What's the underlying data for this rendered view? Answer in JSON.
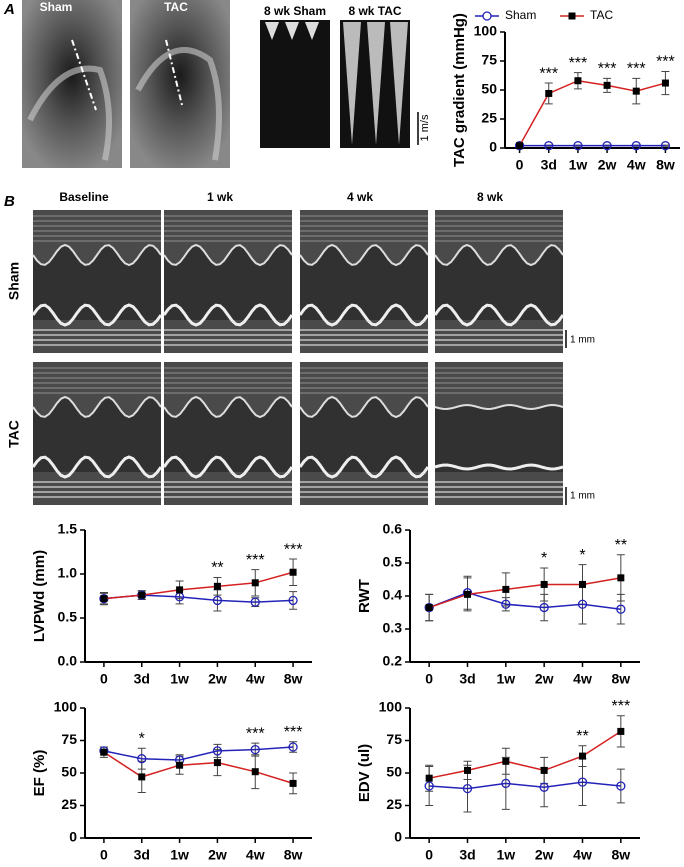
{
  "figure": {
    "panel_a": {
      "label": "A",
      "echo_labels": [
        "Sham",
        "TAC"
      ],
      "doppler_labels": [
        "8 wk Sham",
        "8 wk TAC"
      ],
      "scale": "1 m/s"
    },
    "panel_b": {
      "label": "B",
      "columns": [
        "Baseline",
        "1 wk",
        "4 wk",
        "8 wk"
      ],
      "rows": [
        "Sham",
        "TAC"
      ],
      "scales": [
        "1 mm",
        "1 mm"
      ]
    }
  },
  "chart_data": [
    {
      "type": "line",
      "y_label": "TAC gradient (mmHg)",
      "categories": [
        "0",
        "3d",
        "1w",
        "2w",
        "4w",
        "8w"
      ],
      "ylim": [
        0,
        100
      ],
      "yticks": [
        0,
        25,
        50,
        75,
        100
      ],
      "legend": "top",
      "series": [
        {
          "name": "Sham",
          "color": "#2323b8",
          "marker": "circle-open",
          "values": [
            2,
            2,
            2,
            2,
            2,
            2
          ],
          "errors": [
            0.5,
            0.5,
            0.5,
            0.5,
            0.5,
            0.5
          ]
        },
        {
          "name": "TAC",
          "color": "#d42020",
          "marker": "square",
          "values": [
            2,
            47,
            58,
            54,
            49,
            56
          ],
          "errors": [
            0,
            9,
            7,
            6,
            11,
            10
          ]
        }
      ],
      "significance": [
        null,
        "***",
        "***",
        "***",
        "***",
        "***"
      ]
    },
    {
      "type": "line",
      "y_label": "LVPWd (mm)",
      "categories": [
        "0",
        "3d",
        "1w",
        "2w",
        "4w",
        "8w"
      ],
      "ylim": [
        0,
        1.5
      ],
      "yticks": [
        {
          "value": 0,
          "label": "0.0"
        },
        0.5,
        {
          "value": 1,
          "label": "1.0"
        },
        1.5
      ],
      "series": [
        {
          "name": "Sham",
          "color": "#2323b8",
          "marker": "circle-open",
          "values": [
            0.72,
            0.76,
            0.74,
            0.7,
            0.68,
            0.7
          ],
          "errors": [
            0.06,
            0.05,
            0.08,
            0.12,
            0.05,
            0.1
          ]
        },
        {
          "name": "TAC",
          "color": "#d42020",
          "marker": "square",
          "values": [
            0.72,
            0.76,
            0.82,
            0.86,
            0.9,
            1.02
          ],
          "errors": [
            0.07,
            0.05,
            0.1,
            0.1,
            0.15,
            0.15
          ]
        }
      ],
      "significance": [
        null,
        null,
        null,
        "**",
        "***",
        "***"
      ]
    },
    {
      "type": "line",
      "y_label": "RWT",
      "categories": [
        "0",
        "3d",
        "1w",
        "2w",
        "4w",
        "8w"
      ],
      "ylim": [
        0.2,
        0.6
      ],
      "yticks": [
        0.2,
        0.3,
        0.4,
        0.5,
        0.6
      ],
      "series": [
        {
          "name": "Sham",
          "color": "#2323b8",
          "marker": "circle-open",
          "values": [
            0.365,
            0.41,
            0.375,
            0.365,
            0.375,
            0.36
          ],
          "errors": [
            0.04,
            0.05,
            0.02,
            0.04,
            0.06,
            0.045
          ]
        },
        {
          "name": "TAC",
          "color": "#d42020",
          "marker": "square",
          "values": [
            0.365,
            0.405,
            0.42,
            0.435,
            0.435,
            0.455
          ],
          "errors": [
            0.04,
            0.05,
            0.05,
            0.05,
            0.06,
            0.07
          ]
        }
      ],
      "significance": [
        null,
        null,
        null,
        "*",
        "*",
        "**"
      ]
    },
    {
      "type": "line",
      "y_label": "EF (%)",
      "categories": [
        "0",
        "3d",
        "1w",
        "2w",
        "4w",
        "8w"
      ],
      "ylim": [
        0,
        100
      ],
      "yticks": [
        0,
        25,
        50,
        75,
        100
      ],
      "series": [
        {
          "name": "Sham",
          "color": "#2323b8",
          "marker": "circle-open",
          "values": [
            67,
            61,
            60,
            67,
            68,
            70
          ],
          "errors": [
            3,
            8,
            4,
            5,
            5,
            4
          ]
        },
        {
          "name": "TAC",
          "color": "#d42020",
          "marker": "square",
          "values": [
            66,
            47,
            56,
            58,
            51,
            42
          ],
          "errors": [
            4,
            12,
            7,
            10,
            13,
            8
          ]
        }
      ],
      "significance": [
        null,
        "*",
        null,
        null,
        "***",
        "***"
      ]
    },
    {
      "type": "line",
      "y_label": "EDV (ul)",
      "categories": [
        "0",
        "3d",
        "1w",
        "2w",
        "4w",
        "8w"
      ],
      "ylim": [
        0,
        100
      ],
      "yticks": [
        0,
        25,
        50,
        75,
        100
      ],
      "series": [
        {
          "name": "Sham",
          "color": "#2323b8",
          "marker": "circle-open",
          "values": [
            40,
            38,
            42,
            39,
            43,
            40
          ],
          "errors": [
            15,
            18,
            20,
            15,
            18,
            13
          ]
        },
        {
          "name": "TAC",
          "color": "#d42020",
          "marker": "square",
          "values": [
            46,
            52,
            59,
            52,
            63,
            82
          ],
          "errors": [
            10,
            7,
            10,
            10,
            8,
            12
          ]
        }
      ],
      "significance": [
        null,
        null,
        null,
        null,
        "**",
        "***"
      ]
    }
  ]
}
